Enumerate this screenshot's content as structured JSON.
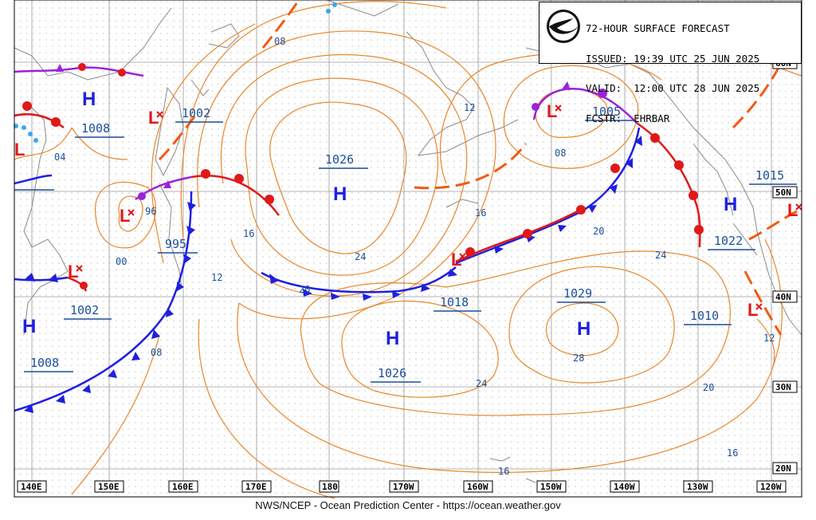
{
  "header": {
    "line1": "72-HOUR SURFACE FORECAST",
    "line2": "ISSUED: 19:39 UTC 25 JUN 2025",
    "line3": "VALID:  12:00 UTC 28 JUN 2025",
    "line4": "FCSTR:  EHRBAR",
    "logo_text": "NOAA"
  },
  "footer": "NWS/NCEP - Ocean Prediction Center - https://ocean.weather.gov",
  "longitude_labels": [
    "140E",
    "150E",
    "160E",
    "170E",
    "180",
    "170W",
    "160W",
    "150W",
    "140W",
    "130W",
    "120W"
  ],
  "latitude_labels": [
    "60N",
    "50N",
    "40N",
    "30N",
    "20N"
  ],
  "highs": [
    {
      "pressure": "1008",
      "mark": "H"
    },
    {
      "pressure": "1026",
      "mark": "H"
    },
    {
      "pressure": "1026",
      "mark": "H"
    },
    {
      "pressure": "1029",
      "mark": "H"
    },
    {
      "pressure": "1015",
      "mark": "H"
    },
    {
      "pressure": "1022",
      "mark": "H"
    },
    {
      "pressure": "1008",
      "mark": "H"
    }
  ],
  "lows": [
    {
      "pressure": "1002",
      "mark": "L"
    },
    {
      "pressure": "1005",
      "mark": "L"
    },
    {
      "pressure": "995",
      "mark": "L"
    },
    {
      "pressure": "1018",
      "mark": "L"
    },
    {
      "pressure": "1002",
      "mark": "L"
    },
    {
      "pressure": "1010",
      "mark": "L"
    }
  ],
  "isobar_labels": [
    "08",
    "04",
    "96",
    "00",
    "16",
    "12",
    "08",
    "20",
    "24",
    "16",
    "20",
    "24",
    "12",
    "08",
    "20",
    "24",
    "28",
    "24",
    "20",
    "16",
    "12",
    "16",
    "04",
    "12",
    "08",
    "04"
  ],
  "colors": {
    "isobar": "#e8872a",
    "cold_front": "#1f1fe0",
    "warm_front": "#e01818",
    "occluded_front": "#9b22d8",
    "trough": "#f25a10",
    "pressure_label": "#1c4f9c",
    "land": "#8a8a8a",
    "grid": "#9a9a9a",
    "dots": "#c8c8c8",
    "ice": "#3aa7ee"
  }
}
